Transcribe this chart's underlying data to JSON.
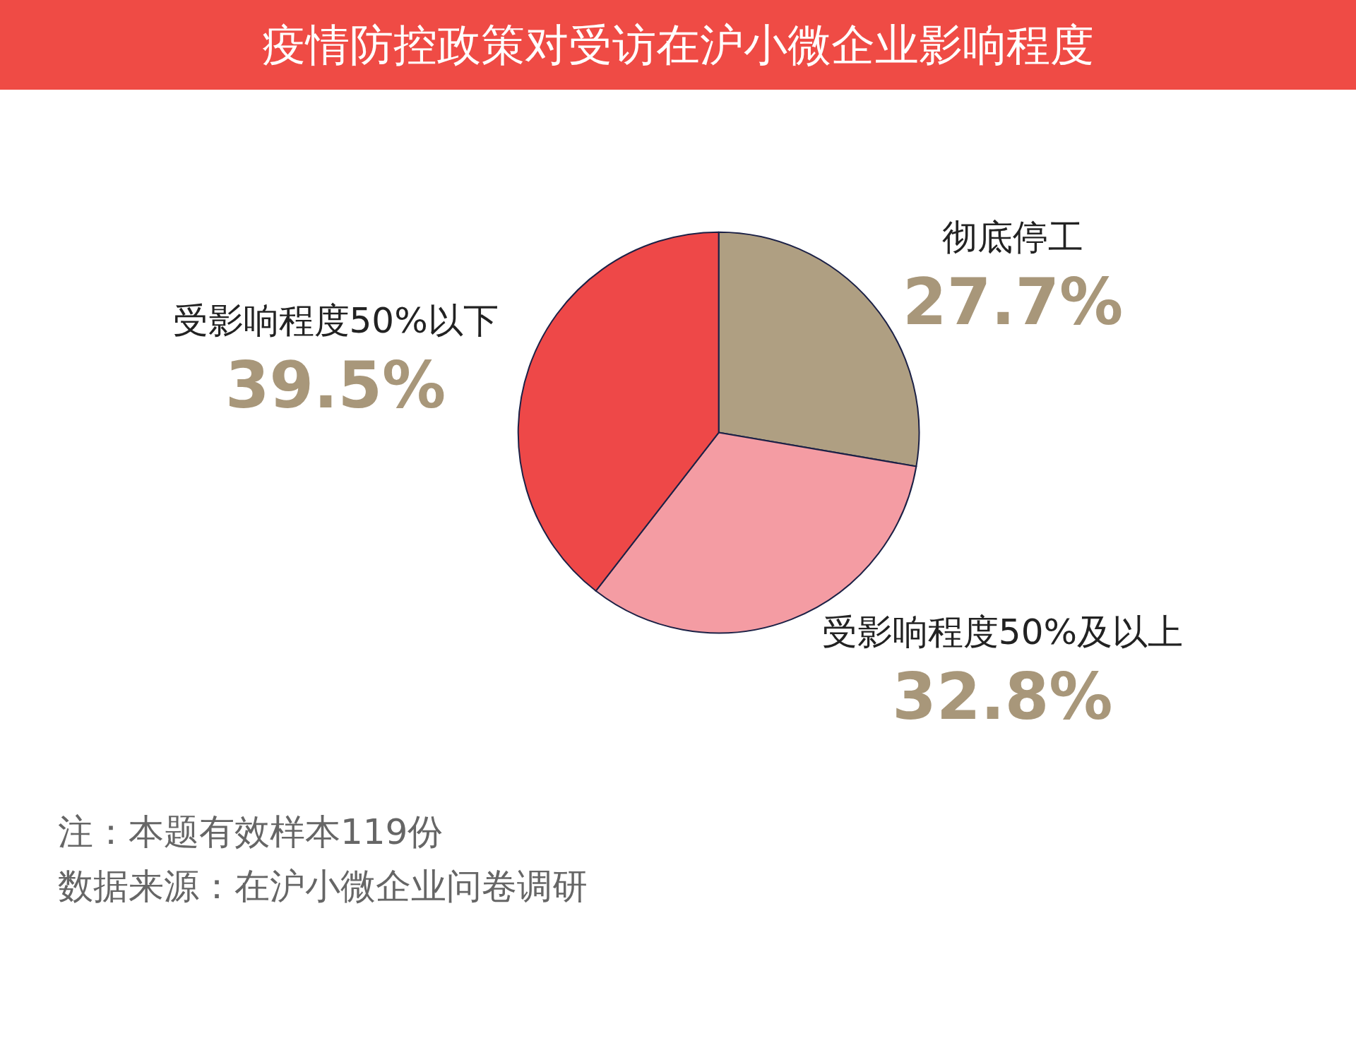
{
  "chart_data": {
    "type": "pie",
    "title": "疫情防控政策对受访在沪小微企业影响程度",
    "categories": [
      "彻底停工",
      "受影响程度50%及以上",
      "受影响程度50%以下"
    ],
    "values": [
      27.7,
      32.8,
      39.5
    ],
    "value_labels": [
      "27.7%",
      "32.8%",
      "39.5%"
    ],
    "colors": [
      "#af9f82",
      "#f49ca3",
      "#ee4848"
    ],
    "annotations": [
      "注：本题有效样本119份",
      "数据来源：在沪小微企业问卷调研"
    ]
  }
}
